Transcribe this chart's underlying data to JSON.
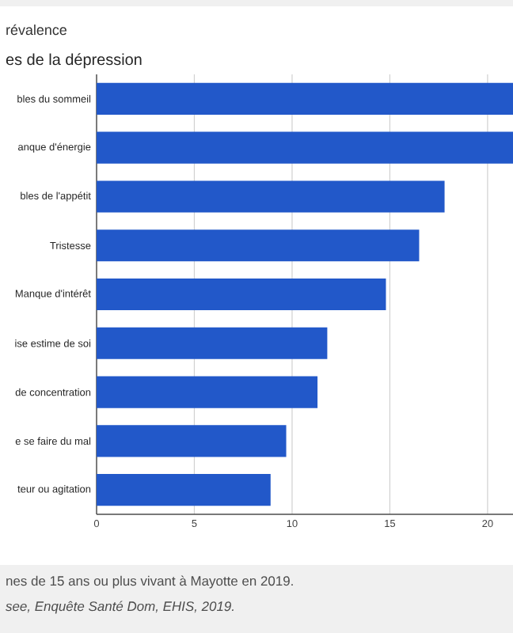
{
  "chart_data": {
    "type": "bar",
    "orientation": "horizontal",
    "title": "révalence",
    "subtitle": "es de la dépression",
    "categories": [
      "bles du sommeil",
      "anque d'énergie",
      "bles de l'appétit",
      "Tristesse",
      "Manque d'intérêt",
      "ise estime de soi",
      "de concentration",
      "e se faire du mal",
      "teur ou agitation"
    ],
    "values": [
      21.3,
      21.3,
      17.8,
      16.5,
      14.8,
      11.8,
      11.3,
      9.7,
      8.9
    ],
    "color": "#2258c9",
    "xlim": [
      0,
      21.3
    ],
    "xticks": [
      0,
      5,
      10,
      15,
      20
    ],
    "grid": "x",
    "annotations": [
      "nes de 15 ans ou plus vivant à Mayotte en 2019.",
      "see, Enquête Santé Dom, EHIS, 2019."
    ]
  }
}
